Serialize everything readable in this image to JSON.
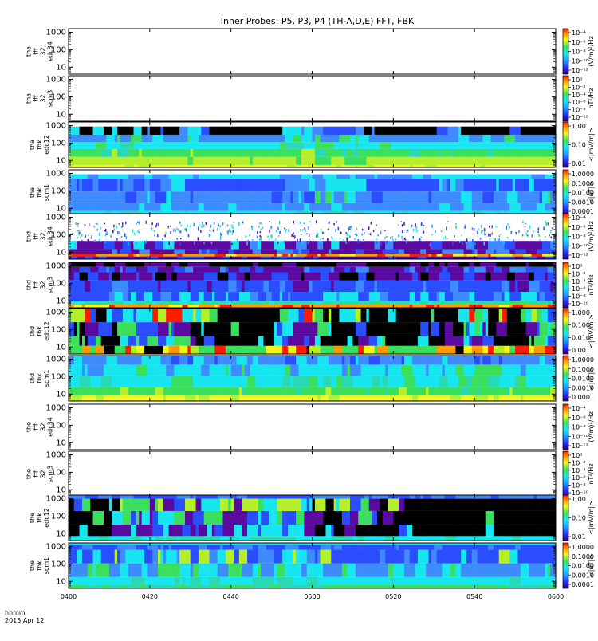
{
  "chart_data": {
    "type": "heatmap",
    "title": "Inner Probes: P5, P3, P4 (TH-A,D,E) FFT, FBK",
    "x_tick_labels": [
      "0400",
      "0420",
      "0440",
      "0500",
      "0520",
      "0540",
      "0600"
    ],
    "x_axis_label_lines": [
      "hhmm",
      "2015 Apr 12"
    ],
    "y_tick_labels": [
      "10",
      "100",
      "1000"
    ],
    "panels": [
      {
        "label_lines": [
          "tha",
          "fff",
          "32",
          "edc34"
        ],
        "colorbar_label": "(V/m)²/Hz",
        "colorbar_ticks": [
          "10⁻⁴",
          "10⁻⁶",
          "10⁻⁸",
          "10⁻¹⁰",
          "10⁻¹²"
        ],
        "pattern": "empty"
      },
      {
        "label_lines": [
          "tha",
          "fff",
          "32",
          "scm3"
        ],
        "colorbar_label": "nT²/Hz",
        "colorbar_ticks": [
          "10⁰",
          "10⁻²",
          "10⁻⁴",
          "10⁻⁶",
          "10⁻⁸",
          "10⁻¹⁰"
        ],
        "pattern": "empty"
      },
      {
        "label_lines": [
          "tha",
          "fbk",
          "edc12"
        ],
        "colorbar_label": "<|mV/m|>",
        "colorbar_ticks": [
          "1.00",
          "0.10",
          "0.01"
        ],
        "pattern": "efb"
      },
      {
        "label_lines": [
          "tha",
          "fbk",
          "scm1"
        ],
        "colorbar_label": "<|nT|>",
        "colorbar_ticks": [
          "1.0000",
          "0.1000",
          "0.0100",
          "0.0010",
          "0.0001"
        ],
        "pattern": "sfb"
      },
      {
        "label_lines": [
          "thd",
          "fff",
          "32",
          "edc34"
        ],
        "colorbar_label": "(V/m)²/Hz",
        "colorbar_ticks": [
          "10⁻⁴",
          "10⁻⁶",
          "10⁻⁸",
          "10⁻¹⁰",
          "10⁻¹²"
        ],
        "pattern": "fffE"
      },
      {
        "label_lines": [
          "thd",
          "fff",
          "32",
          "scm3"
        ],
        "colorbar_label": "nT²/Hz",
        "colorbar_ticks": [
          "10⁰",
          "10⁻²",
          "10⁻⁴",
          "10⁻⁶",
          "10⁻⁸",
          "10⁻¹⁰"
        ],
        "pattern": "fffS"
      },
      {
        "label_lines": [
          "thd",
          "fbk",
          "edc12"
        ],
        "colorbar_label": "<|mV/m|>",
        "colorbar_ticks": [
          "1.000",
          "0.100",
          "0.010",
          "0.001"
        ],
        "pattern": "efbd"
      },
      {
        "label_lines": [
          "thd",
          "fbk",
          "scm1"
        ],
        "colorbar_label": "<|nT|>",
        "colorbar_ticks": [
          "1.0000",
          "0.1000",
          "0.0100",
          "0.0010",
          "0.0001"
        ],
        "pattern": "sfbd"
      },
      {
        "label_lines": [
          "the",
          "fff",
          "32",
          "edc34"
        ],
        "colorbar_label": "(V/m)²/Hz",
        "colorbar_ticks": [
          "10⁻⁴",
          "10⁻⁶",
          "10⁻⁸",
          "10⁻¹⁰",
          "10⁻¹²"
        ],
        "pattern": "empty"
      },
      {
        "label_lines": [
          "the",
          "fff",
          "32",
          "scm3"
        ],
        "colorbar_label": "nT²/Hz",
        "colorbar_ticks": [
          "10⁰",
          "10⁻²",
          "10⁻⁴",
          "10⁻⁶",
          "10⁻⁸",
          "10⁻¹⁰"
        ],
        "pattern": "empty"
      },
      {
        "label_lines": [
          "the",
          "fbk",
          "edc12"
        ],
        "colorbar_label": "<|mV/m|>",
        "colorbar_ticks": [
          "1.00",
          "0.10",
          "0.01"
        ],
        "pattern": "efbe"
      },
      {
        "label_lines": [
          "the",
          "fbk",
          "scm1"
        ],
        "colorbar_label": "<|nT|>",
        "colorbar_ticks": [
          "1.0000",
          "0.1000",
          "0.0100",
          "0.0010",
          "0.0001"
        ],
        "pattern": "sfbe"
      }
    ],
    "colors": {
      "black": "#000000",
      "purple": "#5a0aa0",
      "blue": "#2a4dff",
      "lightblue": "#3d8bff",
      "cyan": "#17e6f0",
      "aqua": "#29d9b5",
      "green": "#3ae05c",
      "lime": "#b4ef2a",
      "yellow": "#f5f51a",
      "orange": "#ff9a00",
      "red": "#ff1a00"
    },
    "grid": false
  }
}
